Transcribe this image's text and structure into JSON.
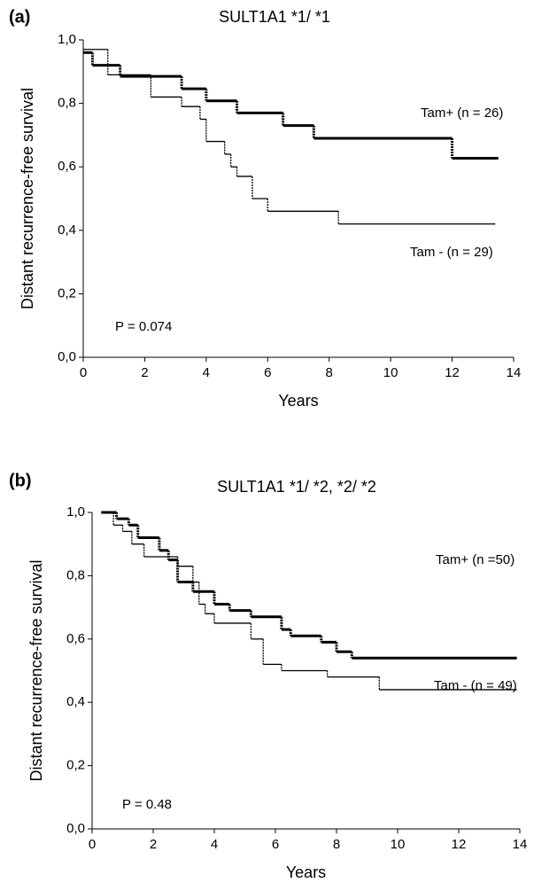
{
  "chart_data": [
    {
      "type": "step",
      "panel": "(a)",
      "title": "SULT1A1 *1/ *1",
      "x_label": "Years",
      "y_label": "Distant recurrence-free survival",
      "annotation": "P = 0.074",
      "xlim": [
        0,
        14
      ],
      "xticks": [
        0,
        2,
        4,
        6,
        8,
        10,
        12,
        14
      ],
      "ylim": [
        0,
        1
      ],
      "yticks": [
        {
          "value": 0,
          "label": "0,0"
        },
        {
          "value": 0.2,
          "label": "0,2"
        },
        {
          "value": 0.4,
          "label": "0,4"
        },
        {
          "value": 0.6,
          "label": "0,6"
        },
        {
          "value": 0.8,
          "label": "0,8"
        },
        {
          "value": 1,
          "label": "1,0"
        }
      ],
      "series": [
        {
          "name": "Tam+  (n = 26)",
          "color": "#000000",
          "line_width": 3,
          "x": [
            0,
            0.3,
            1.2,
            3.2,
            4,
            5,
            6.5,
            7.5,
            12,
            13.5
          ],
          "values": [
            0.96,
            0.92,
            0.885,
            0.846,
            0.808,
            0.77,
            0.73,
            0.69,
            0.627,
            0.627
          ]
        },
        {
          "name": "Tam -  (n = 29)",
          "color": "#000000",
          "line_width": 1.3,
          "x": [
            0,
            0.8,
            2.2,
            3.2,
            3.8,
            4,
            4.6,
            4.8,
            5,
            5.5,
            6,
            8.3,
            13.4
          ],
          "values": [
            0.97,
            0.89,
            0.82,
            0.79,
            0.75,
            0.68,
            0.64,
            0.6,
            0.57,
            0.5,
            0.46,
            0.42,
            0.42
          ]
        }
      ]
    },
    {
      "type": "step",
      "panel": "(b)",
      "title": "SULT1A1 *1/ *2, *2/ *2",
      "x_label": "Years",
      "y_label": "Distant recurrence-free survival",
      "annotation": "P = 0.48",
      "xlim": [
        0,
        14
      ],
      "xticks": [
        0,
        2,
        4,
        6,
        8,
        10,
        12,
        14
      ],
      "ylim": [
        0,
        1
      ],
      "yticks": [
        {
          "value": 0,
          "label": "0,0"
        },
        {
          "value": 0.2,
          "label": "0,2"
        },
        {
          "value": 0.4,
          "label": "0,4"
        },
        {
          "value": 0.6,
          "label": "0,6"
        },
        {
          "value": 0.8,
          "label": "0,8"
        },
        {
          "value": 1,
          "label": "1,0"
        }
      ],
      "series": [
        {
          "name": "Tam+  (n =50)",
          "color": "#000000",
          "line_width": 3,
          "x": [
            0.3,
            0.8,
            1.2,
            1.5,
            2.2,
            2.5,
            2.8,
            3.3,
            4,
            4.5,
            5.2,
            6.2,
            6.5,
            7.5,
            8,
            8.5,
            13.9
          ],
          "values": [
            1.0,
            0.98,
            0.96,
            0.92,
            0.88,
            0.85,
            0.78,
            0.75,
            0.71,
            0.69,
            0.67,
            0.63,
            0.61,
            0.59,
            0.56,
            0.54,
            0.54
          ]
        },
        {
          "name": "Tam -  (n = 49)",
          "color": "#000000",
          "line_width": 1.3,
          "x": [
            0.3,
            0.7,
            1,
            1.3,
            1.7,
            2.8,
            3.3,
            3.5,
            3.7,
            4,
            5.2,
            5.6,
            6.2,
            7.7,
            9.4,
            13.9
          ],
          "values": [
            1.0,
            0.96,
            0.94,
            0.9,
            0.86,
            0.83,
            0.78,
            0.71,
            0.68,
            0.65,
            0.6,
            0.52,
            0.5,
            0.48,
            0.44,
            0.44
          ]
        }
      ]
    }
  ]
}
